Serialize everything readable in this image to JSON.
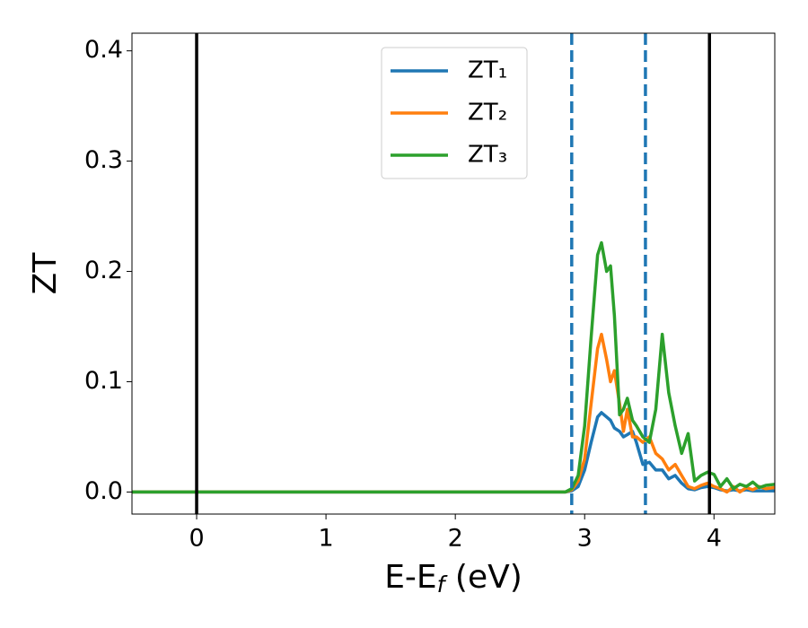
{
  "chart_data": {
    "type": "line",
    "ylabel": "ZT",
    "xlabel": {
      "main": "E-E",
      "sub": "f",
      "tail": " (eV)"
    },
    "xlim": [
      -0.5,
      4.47
    ],
    "ylim": [
      -0.02,
      0.416
    ],
    "xticks": [
      0,
      1,
      2,
      3,
      4
    ],
    "yticks": [
      {
        "value": 0,
        "label": "0.0"
      },
      0.1,
      0.2,
      0.3,
      0.4
    ],
    "grid": false,
    "legend": "upper center",
    "vlines": [
      {
        "x": 0,
        "color": "#000000",
        "style": "solid"
      },
      {
        "x": 3.965,
        "color": "#000000",
        "style": "solid"
      },
      {
        "x": 2.9,
        "color": "#1f77b4",
        "style": "dashed"
      },
      {
        "x": 3.47,
        "color": "#1f77b4",
        "style": "dashed"
      }
    ],
    "x": [
      -0.5,
      2.8,
      2.85,
      2.9,
      2.95,
      3.0,
      3.05,
      3.1,
      3.13,
      3.17,
      3.2,
      3.23,
      3.27,
      3.3,
      3.33,
      3.37,
      3.4,
      3.45,
      3.5,
      3.55,
      3.6,
      3.65,
      3.7,
      3.75,
      3.8,
      3.85,
      3.9,
      3.95,
      4.0,
      4.05,
      4.1,
      4.15,
      4.2,
      4.25,
      4.3,
      4.35,
      4.4,
      4.47
    ],
    "series": [
      {
        "name": "ZT₁",
        "color": "#1f77b4",
        "values": [
          0,
          0,
          0,
          0.001,
          0.005,
          0.02,
          0.045,
          0.068,
          0.072,
          0.068,
          0.065,
          0.058,
          0.055,
          0.05,
          0.052,
          0.055,
          0.045,
          0.025,
          0.027,
          0.02,
          0.02,
          0.012,
          0.015,
          0.008,
          0.003,
          0.002,
          0.004,
          0.005,
          0.004,
          0.002,
          0.001,
          0.002,
          0.001,
          0.002,
          0.001,
          0.001,
          0.001,
          0.001
        ]
      },
      {
        "name": "ZT₂",
        "color": "#ff7f0e",
        "values": [
          0,
          0,
          0,
          0.002,
          0.01,
          0.03,
          0.08,
          0.13,
          0.143,
          0.12,
          0.1,
          0.11,
          0.08,
          0.055,
          0.075,
          0.05,
          0.05,
          0.045,
          0.05,
          0.035,
          0.03,
          0.02,
          0.025,
          0.015,
          0.005,
          0.003,
          0.006,
          0.008,
          0.005,
          0.003,
          0,
          0.005,
          0,
          0.004,
          0.002,
          0.005,
          0.003,
          0.004
        ]
      },
      {
        "name": "ZT₃",
        "color": "#2ca02c",
        "values": [
          0,
          0,
          0,
          0.003,
          0.015,
          0.06,
          0.14,
          0.215,
          0.226,
          0.2,
          0.205,
          0.16,
          0.07,
          0.075,
          0.085,
          0.065,
          0.06,
          0.05,
          0.045,
          0.075,
          0.143,
          0.09,
          0.06,
          0.035,
          0.053,
          0.01,
          0.015,
          0.018,
          0.016,
          0.005,
          0.012,
          0.003,
          0.007,
          0.005,
          0.009,
          0.004,
          0.006,
          0.007
        ]
      }
    ]
  }
}
